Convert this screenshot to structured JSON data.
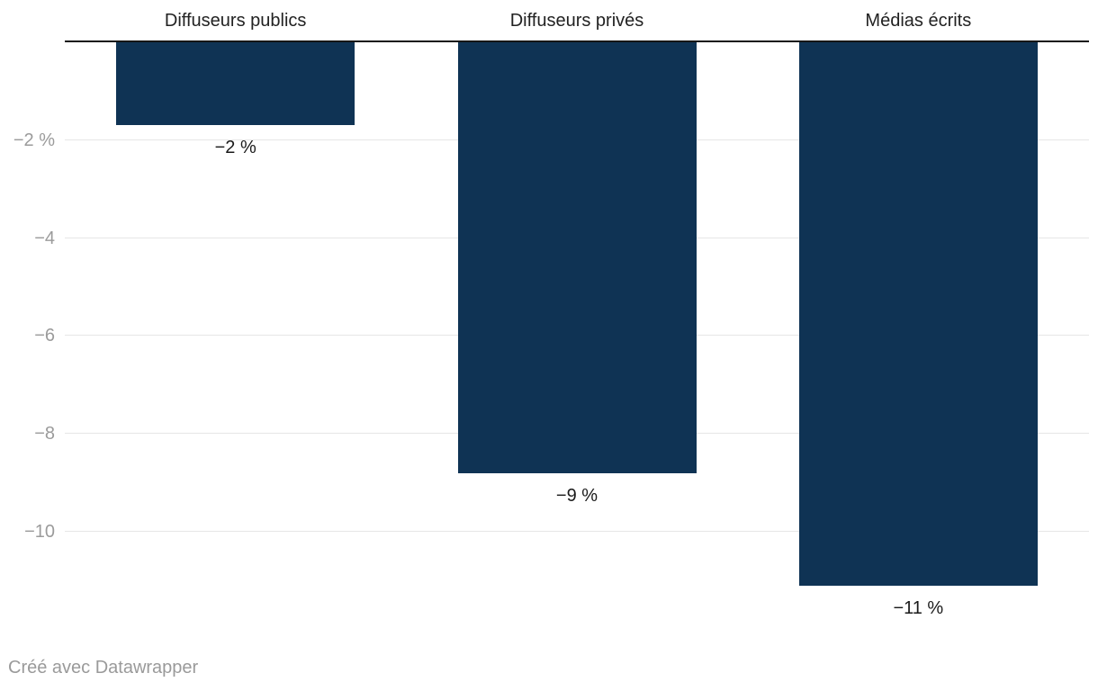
{
  "chart_data": {
    "type": "bar",
    "orientation": "vertical-columns",
    "categories": [
      "Diffuseurs publics",
      "Diffuseurs privés",
      "Médias écrits"
    ],
    "values": [
      -2,
      -9,
      -11
    ],
    "value_labels": [
      "−2 %",
      "−9 %",
      "−11 %"
    ],
    "bar_rendered_values": [
      -1.7,
      -8.8,
      -11.1
    ],
    "unit": "%",
    "y_axis": {
      "ticks": [
        {
          "value": -2,
          "label": "−2 %"
        },
        {
          "value": -4,
          "label": "−4"
        },
        {
          "value": -6,
          "label": "−6"
        },
        {
          "value": -8,
          "label": "−8"
        },
        {
          "value": -10,
          "label": "−10"
        }
      ],
      "range": [
        0,
        -12
      ],
      "baseline": 0,
      "grid": true
    },
    "legend_position": "none",
    "colors": {
      "bar": "#0f3354",
      "baseline_axis": "#161616",
      "gridline": "#e6e6e6",
      "category_label": "#222222",
      "value_label": "#1a1a1a",
      "tick_label": "#9b9b9b"
    }
  },
  "footer": {
    "attribution": "Créé avec Datawrapper",
    "color": "#9a9a9a"
  }
}
